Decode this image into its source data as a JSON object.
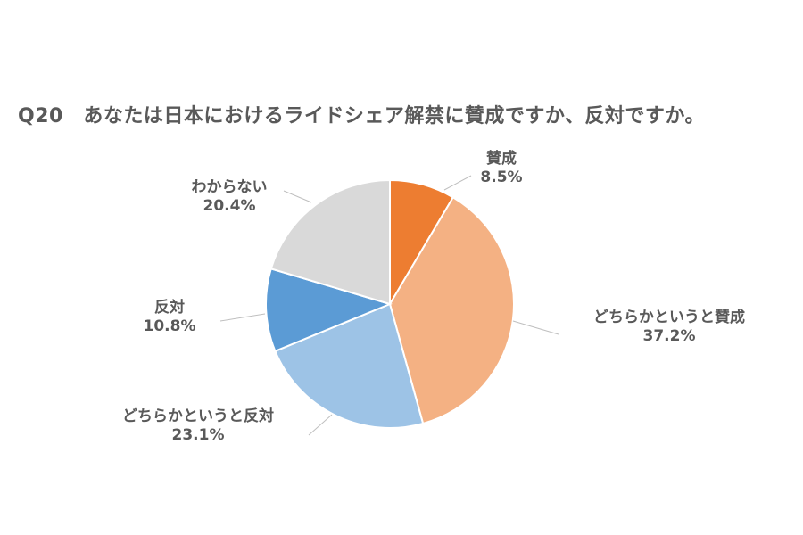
{
  "chart_data": {
    "type": "pie",
    "title": "Q20　あなたは日本におけるライドシェア解禁に賛成ですか、反対ですか。",
    "start_angle_deg": 0,
    "direction": "clockwise",
    "slices": [
      {
        "label": "賛成",
        "value": 8.5,
        "value_label": "8.5%",
        "color": "#ED7D31"
      },
      {
        "label": "どちらかというと賛成",
        "value": 37.2,
        "value_label": "37.2%",
        "color": "#F4B183"
      },
      {
        "label": "どちらかというと反対",
        "value": 23.1,
        "value_label": "23.1%",
        "color": "#9DC3E6"
      },
      {
        "label": "反対",
        "value": 10.8,
        "value_label": "10.8%",
        "color": "#5B9BD5"
      },
      {
        "label": "わからない",
        "value": 20.4,
        "value_label": "20.4%",
        "color": "#D9D9D9"
      }
    ]
  }
}
